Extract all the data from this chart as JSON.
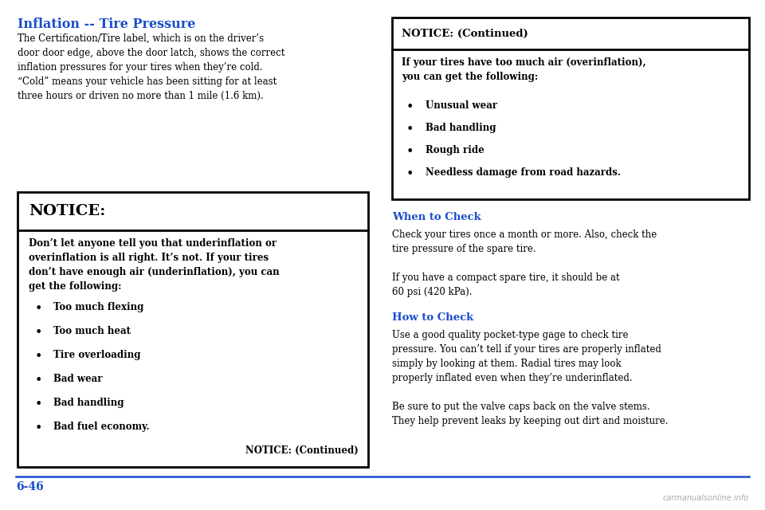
{
  "bg_color": "#ffffff",
  "blue_color": "#1a4dcc",
  "black_color": "#000000",
  "title": "Inflation -- Tire Pressure",
  "title_fontsize": 11.5,
  "body_fontsize": 8.5,
  "bold_fontsize": 8.5,
  "heading_fontsize": 9.5,
  "notice_header_fontsize": 14,
  "page_number": "6-46",
  "intro_text": "The Certification/Tire label, which is on the driver’s\ndoor door edge, above the door latch, shows the correct\ninflation pressures for your tires when they’re cold.\n“Cold” means your vehicle has been sitting for at least\nthree hours or driven no more than 1 mile (1.6 km).",
  "notice_title": "NOTICE:",
  "notice_body": "Don’t let anyone tell you that underinflation or\noverinflation is all right. It’s not. If your tires\ndon’t have enough air (underinflation), you can\nget the following:",
  "notice_bullets": [
    "Too much flexing",
    "Too much heat",
    "Tire overloading",
    "Bad wear",
    "Bad handling",
    "Bad fuel economy."
  ],
  "notice_continued": "NOTICE: (Continued)",
  "right_notice_header": "NOTICE: (Continued)",
  "right_notice_body": "If your tires have too much air (overinflation),\nyou can get the following:",
  "right_notice_bullets": [
    "Unusual wear",
    "Bad handling",
    "Rough ride",
    "Needless damage from road hazards."
  ],
  "when_to_check_title": "When to Check",
  "when_to_check_body": "Check your tires once a month or more. Also, check the\ntire pressure of the spare tire.\n\nIf you have a compact spare tire, it should be at\n60 psi (420 kPa).",
  "how_to_check_title": "How to Check",
  "how_to_check_body": "Use a good quality pocket-type gage to check tire\npressure. You can’t tell if your tires are properly inflated\nsimply by looking at them. Radial tires may look\nproperly inflated even when they’re underinflated.\n\nBe sure to put the valve caps back on the valve stems.\nThey help prevent leaks by keeping out dirt and moisture."
}
